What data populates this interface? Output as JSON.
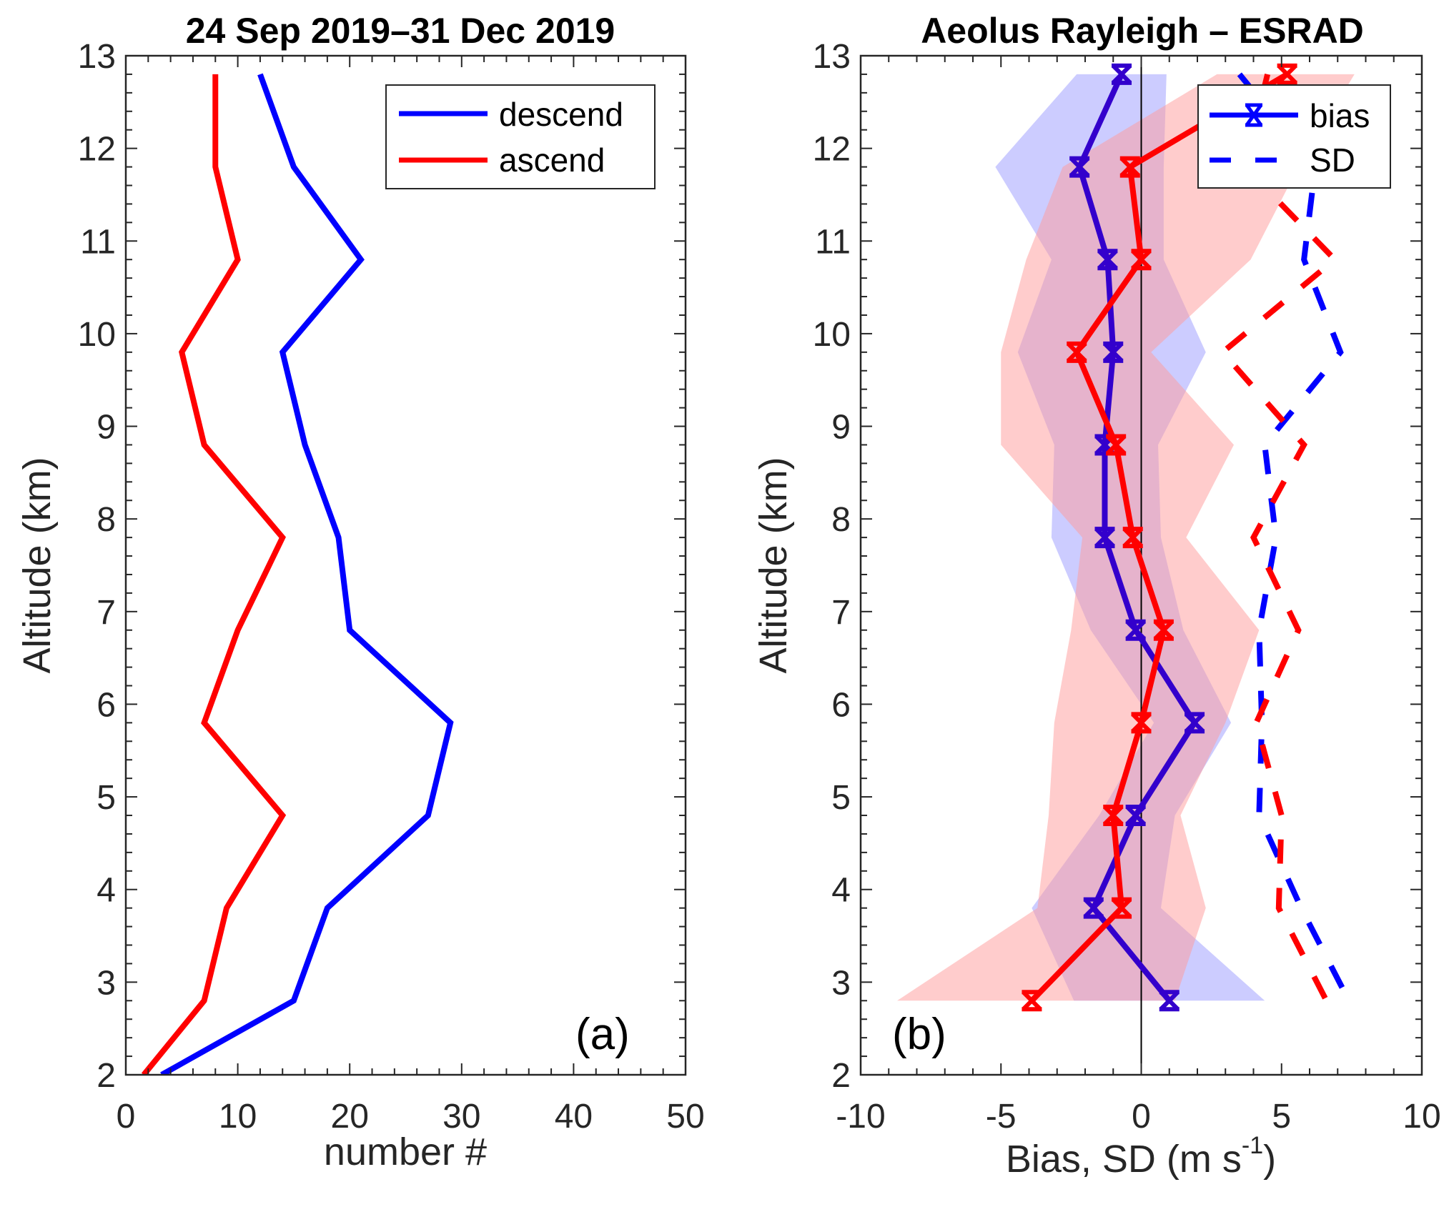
{
  "chart_data": [
    {
      "type": "line",
      "panel_label": "(a)",
      "title": "24 Sep 2019–31 Dec 2019",
      "xlabel": "number #",
      "ylabel": "Altitude (km)",
      "xlim": [
        0,
        50
      ],
      "ylim": [
        2,
        13
      ],
      "xticks": [
        0,
        10,
        20,
        30,
        40,
        50
      ],
      "yticks": [
        2,
        3,
        4,
        5,
        6,
        7,
        8,
        9,
        10,
        11,
        12,
        13
      ],
      "grid": false,
      "legend": {
        "position": "top-right",
        "entries": [
          "descend",
          "ascend"
        ]
      },
      "y": [
        12.8,
        11.8,
        10.8,
        9.8,
        8.8,
        7.8,
        6.8,
        5.8,
        4.8,
        3.8,
        2.8,
        2.0
      ],
      "series": [
        {
          "name": "descend",
          "color": "#0000ff",
          "values": [
            12,
            15,
            21,
            14,
            16,
            19,
            20,
            29,
            27,
            18,
            15,
            3.2
          ]
        },
        {
          "name": "ascend",
          "color": "#ff0000",
          "values": [
            8,
            8,
            10,
            5,
            7,
            14,
            10,
            7,
            14,
            9,
            7,
            1.6
          ]
        }
      ]
    },
    {
      "type": "line",
      "panel_label": "(b)",
      "title": "Aeolus Rayleigh – ESRAD",
      "xlabel": "Bias, SD  (m s",
      "xlabel_sup": "-1",
      "xlabel_end": ")",
      "ylabel": "Altitude (km)",
      "xlim": [
        -10,
        10
      ],
      "ylim": [
        2,
        13
      ],
      "xticks": [
        -10,
        -5,
        0,
        5,
        10
      ],
      "yticks": [
        2,
        3,
        4,
        5,
        6,
        7,
        8,
        9,
        10,
        11,
        12,
        13
      ],
      "grid": false,
      "reference_line_x": 0,
      "legend": {
        "position": "top-right",
        "entries": [
          "bias",
          "SD"
        ]
      },
      "y": [
        12.8,
        11.8,
        10.8,
        9.8,
        8.8,
        7.8,
        6.8,
        5.8,
        4.8,
        3.8,
        2.8
      ],
      "series": [
        {
          "name": "descend bias",
          "color": "#3300cc",
          "marker": "x",
          "values": [
            -0.7,
            -2.2,
            -1.2,
            -1.0,
            -1.3,
            -1.3,
            -0.2,
            1.9,
            -0.2,
            -1.7,
            1.0
          ]
        },
        {
          "name": "ascend bias",
          "color": "#ff0000",
          "marker": "x",
          "values": [
            5.2,
            -0.4,
            0.0,
            -2.3,
            -0.9,
            -0.3,
            0.8,
            0.0,
            -1.0,
            -0.7,
            -3.9
          ]
        },
        {
          "name": "descend SD",
          "color": "#0000ff",
          "dash": true,
          "values": [
            3.5,
            6.2,
            5.8,
            7.1,
            4.4,
            4.8,
            4.2,
            4.3,
            4.2,
            5.7,
            7.4
          ]
        },
        {
          "name": "ascend SD",
          "color": "#ff0000",
          "dash": true,
          "values": [
            4.5,
            3.7,
            6.9,
            2.9,
            5.8,
            4.0,
            5.6,
            4.1,
            5.0,
            4.9,
            6.6
          ]
        }
      ],
      "bands": [
        {
          "name": "descend range",
          "color": "#9999ff",
          "opacity": 0.5,
          "lower": [
            -2.3,
            -5.2,
            -3.2,
            -4.4,
            -3.1,
            -3.2,
            -1.8,
            0.45,
            -1.5,
            -3.9,
            -2.4
          ],
          "upper": [
            0.9,
            0.8,
            0.8,
            2.3,
            0.6,
            0.7,
            1.5,
            3.2,
            1.2,
            0.7,
            4.4
          ]
        },
        {
          "name": "ascend range",
          "color": "#ff9999",
          "opacity": 0.5,
          "lower": [
            2.7,
            -2.8,
            -4.1,
            -5.0,
            -5.0,
            -2.1,
            -2.5,
            -3.1,
            -3.3,
            -3.7,
            -8.7
          ],
          "upper": [
            7.6,
            5.6,
            3.9,
            0.35,
            3.3,
            1.6,
            4.2,
            3.0,
            1.4,
            2.3,
            1.2
          ]
        }
      ]
    }
  ]
}
